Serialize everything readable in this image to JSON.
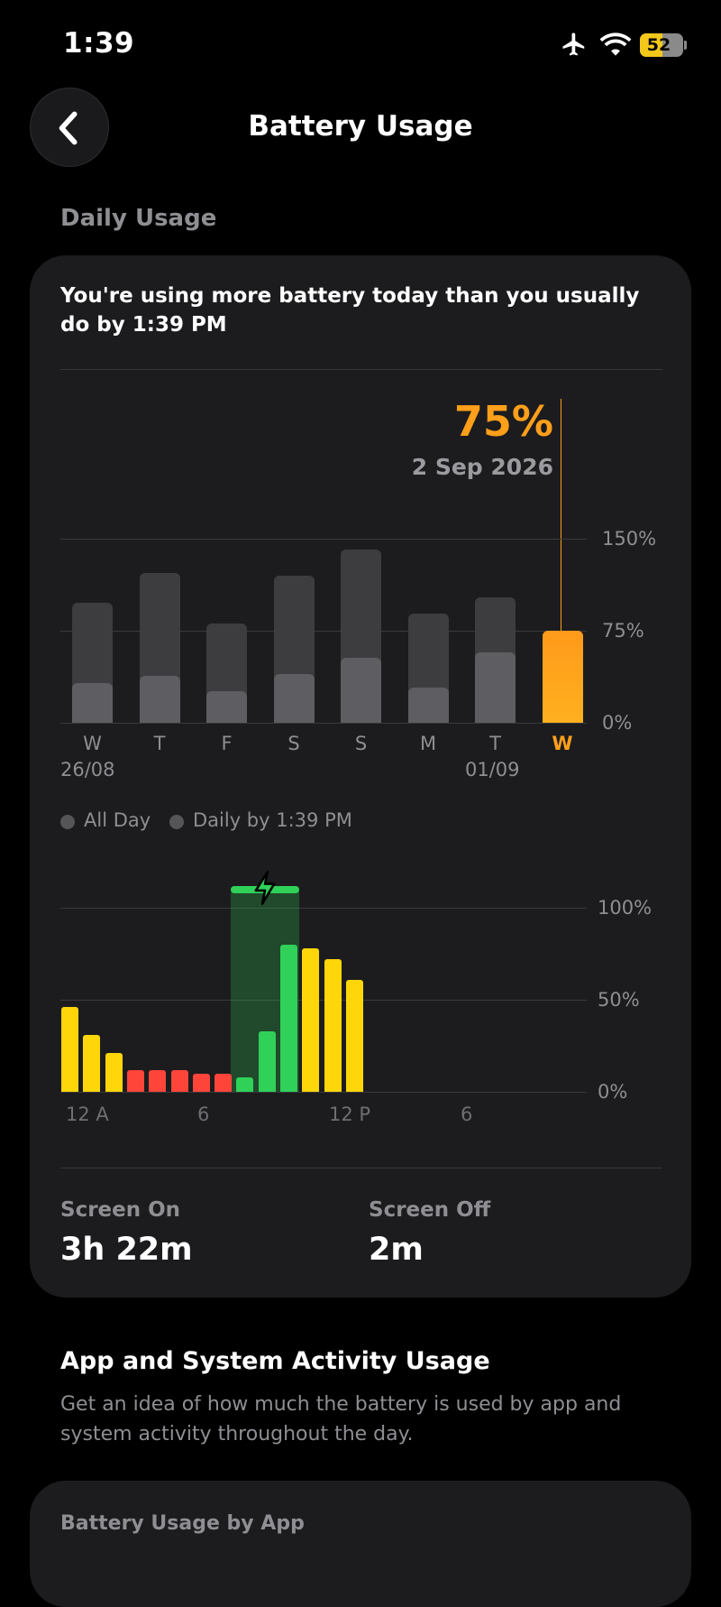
{
  "status_bar": {
    "time": "1:39",
    "battery_level": "52"
  },
  "nav": {
    "title": "Battery Usage"
  },
  "daily_usage": {
    "section_label": "Daily Usage",
    "insight": "You're using more battery today than you usually do by 1:39 PM",
    "selected_value": "75%",
    "selected_date": "2 Sep 2026",
    "y_axis": [
      "150%",
      "75%",
      "0%"
    ],
    "days": [
      "W",
      "T",
      "F",
      "S",
      "S",
      "M",
      "T",
      "W"
    ],
    "date_labels": [
      "26/08",
      "01/09"
    ],
    "legend": {
      "all_day": "All Day",
      "daily_by": "Daily by 1:39 PM"
    }
  },
  "hourly": {
    "y_axis": [
      "100%",
      "50%",
      "0%"
    ],
    "x_axis": [
      "12 A",
      "6",
      "12 P",
      "6"
    ]
  },
  "screen": {
    "on_label": "Screen On",
    "on_value": "3h 22m",
    "off_label": "Screen Off",
    "off_value": "2m"
  },
  "activity": {
    "title": "App and System Activity Usage",
    "description": "Get an idea of how much the battery is used by app and system activity throughout the day."
  },
  "by_app": {
    "label": "Battery Usage by App"
  },
  "colors": {
    "accent_orange": "#ff9f1a",
    "green": "#30d158",
    "yellow": "#ffd60a",
    "red": "#ff453a"
  },
  "chart_data": [
    {
      "type": "bar",
      "categories": [
        "W",
        "T",
        "F",
        "S",
        "S",
        "M",
        "T",
        "W"
      ],
      "series": [
        {
          "name": "All Day",
          "values": [
            98,
            122,
            81,
            120,
            141,
            89,
            102,
            75
          ]
        },
        {
          "name": "Daily by 1:39 PM",
          "values": [
            32,
            38,
            26,
            40,
            53,
            29,
            57,
            75
          ]
        }
      ],
      "ylim": [
        0,
        150
      ],
      "y_ticks": [
        "0%",
        "75%",
        "150%"
      ],
      "selected_index": 7
    },
    {
      "type": "bar",
      "x_ticks": [
        "12 A",
        "6",
        "12 P",
        "6"
      ],
      "values": [
        46,
        31,
        21,
        12,
        12,
        12,
        10,
        10,
        8,
        33,
        80,
        78,
        72,
        61
      ],
      "colors": [
        "yellow",
        "yellow",
        "yellow",
        "red",
        "red",
        "red",
        "red",
        "red",
        "green",
        "green",
        "green",
        "yellow",
        "yellow",
        "yellow"
      ],
      "charging_slots": [
        8,
        10
      ],
      "ylim": [
        0,
        100
      ],
      "y_ticks": [
        "0%",
        "50%",
        "100%"
      ]
    }
  ]
}
